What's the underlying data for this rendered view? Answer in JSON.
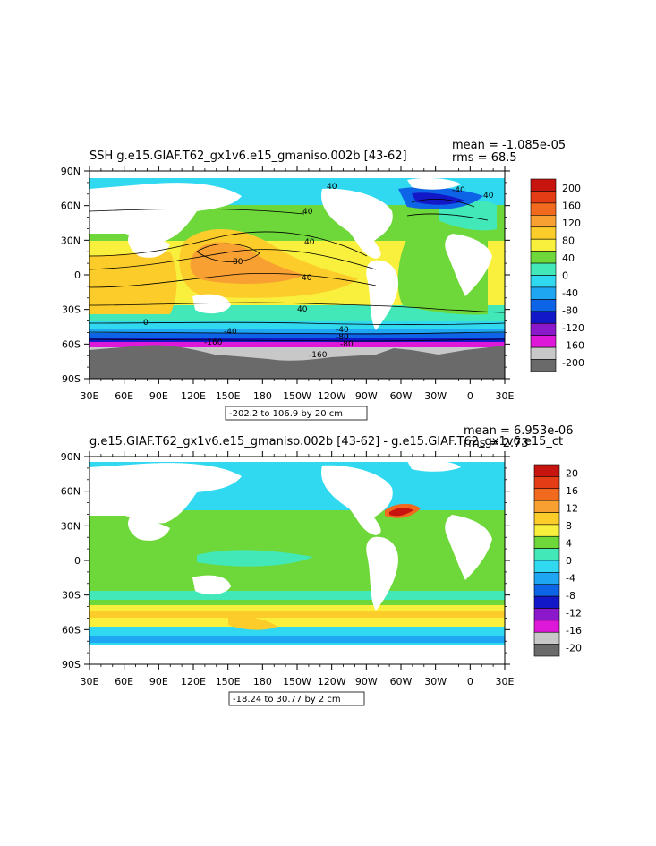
{
  "panels": [
    {
      "id": "top",
      "title": "SSH g.e15.GIAF.T62_gx1v6.e15_gmaniso.002b [43-62]",
      "mean": "mean = -1.085e-05",
      "rms": "rms = 68.5",
      "contour_info": "-202.2 to 106.9 by 20 cm",
      "colorbar_labels": [
        "200",
        "160",
        "120",
        "80",
        "40",
        "0",
        "-40",
        "-80",
        "-120",
        "-160",
        "-200"
      ],
      "colorbar_colors": [
        "#c8140f",
        "#e43c14",
        "#f26a1e",
        "#f8a032",
        "#fccc2a",
        "#f8f03c",
        "#6ed83a",
        "#42e8b8",
        "#30d8f0",
        "#1ea6f2",
        "#0e64e6",
        "#1218c8",
        "#8c18cc",
        "#de18d8",
        "#c8c8c8",
        "#6a6a6a"
      ],
      "contour_labels": [
        "40",
        "40",
        "80",
        "40",
        "40",
        "40",
        "0",
        "-40",
        "-80",
        "-160",
        "-160",
        "-40",
        "-80",
        "40",
        "-40"
      ],
      "x_ticks": [
        "30E",
        "60E",
        "90E",
        "120E",
        "150E",
        "180",
        "150W",
        "120W",
        "90W",
        "60W",
        "30W",
        "0",
        "30E"
      ],
      "y_ticks": [
        "90N",
        "60N",
        "30N",
        "0",
        "30S",
        "60S",
        "90S"
      ]
    },
    {
      "id": "bottom",
      "title": "g.e15.GIAF.T62_gx1v6.e15_gmaniso.002b [43-62] - g.e15.GIAF.T62_gx1v6.e15_ct",
      "mean": "mean = 6.953e-06",
      "rms": "rms = 2.73",
      "contour_info": "-18.24 to 30.77 by 2 cm",
      "colorbar_labels": [
        "20",
        "16",
        "12",
        "8",
        "4",
        "0",
        "-4",
        "-8",
        "-12",
        "-16",
        "-20"
      ],
      "colorbar_colors": [
        "#c8140f",
        "#e43c14",
        "#f26a1e",
        "#f8a032",
        "#fccc2a",
        "#f8f03c",
        "#6ed83a",
        "#42e8b8",
        "#30d8f0",
        "#1ea6f2",
        "#0e64e6",
        "#1218c8",
        "#8c18cc",
        "#de18d8",
        "#c8c8c8",
        "#6a6a6a"
      ],
      "x_ticks": [
        "30E",
        "60E",
        "90E",
        "120E",
        "150E",
        "180",
        "150W",
        "120W",
        "90W",
        "60W",
        "30W",
        "0",
        "30E"
      ],
      "y_ticks": [
        "90N",
        "60N",
        "30N",
        "0",
        "30S",
        "60S",
        "90S"
      ]
    }
  ]
}
